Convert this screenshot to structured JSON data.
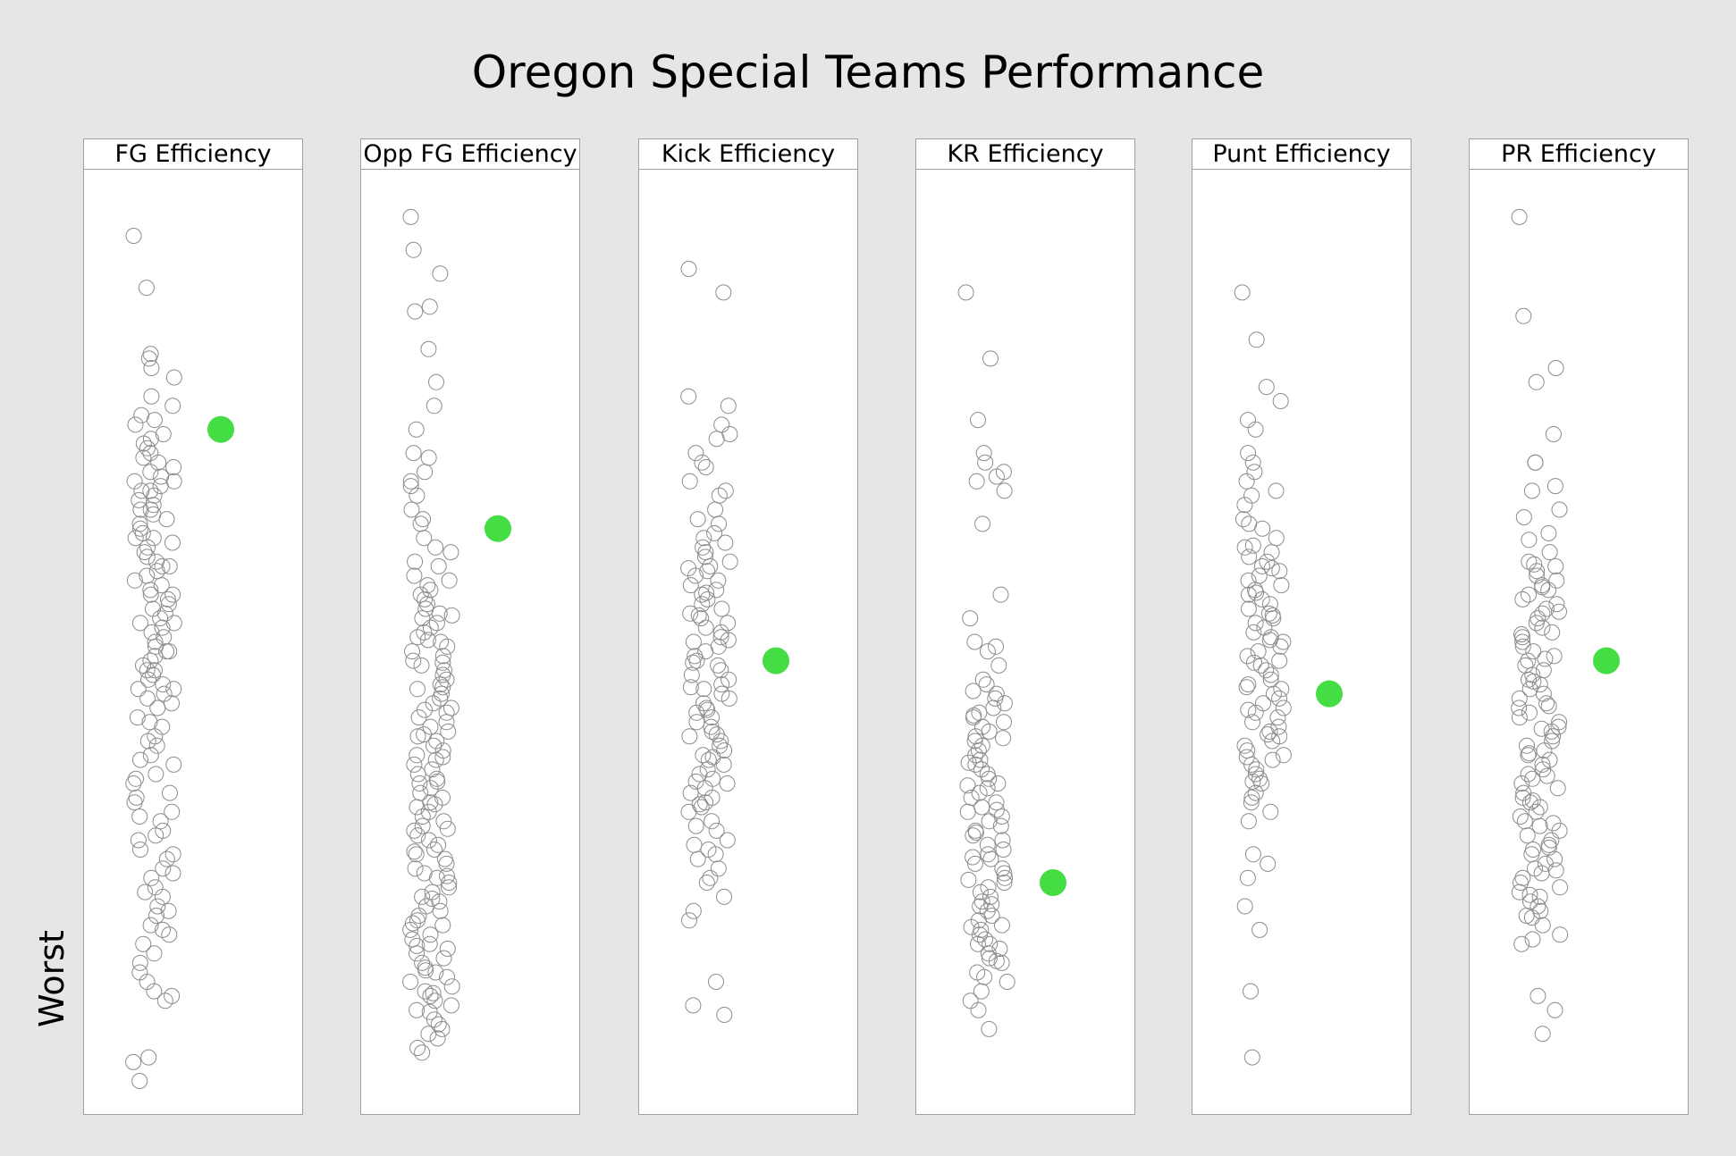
{
  "chart_data": {
    "type": "scatter",
    "title": "Oregon Special Teams Performance",
    "ylabel": "Worst",
    "xlabel": "",
    "grid": false,
    "ylim": [
      0,
      100
    ],
    "colors": {
      "teams": "#8c8c8c",
      "oregon": "#44dd44",
      "panel_border": "#a0a0a0",
      "background": "#e6e6e6"
    },
    "panels": [
      {
        "name": "FG Efficiency",
        "highlight": 72.5,
        "values": [
          93,
          87.5,
          80.5,
          78,
          76,
          74,
          73,
          72,
          71,
          70,
          69.5,
          68.5,
          68,
          67.5,
          67,
          66.5,
          66,
          65.5,
          65,
          64.5,
          64,
          63.5,
          63,
          62.5,
          62,
          61.5,
          61,
          60.5,
          60,
          59.5,
          59,
          58.5,
          58,
          57.5,
          57,
          56.5,
          56,
          55.5,
          55,
          54.5,
          54,
          53.5,
          53,
          52.5,
          52,
          51.5,
          51,
          50.5,
          50,
          49.5,
          49,
          48.5,
          48,
          47.5,
          47,
          46.5,
          46,
          45.5,
          45,
          44.5,
          44,
          43,
          42,
          41,
          40,
          39,
          38,
          37,
          36,
          35,
          34,
          33,
          32,
          31,
          30,
          29,
          28,
          27,
          26,
          25,
          24,
          23,
          22,
          21,
          20,
          19,
          17,
          15,
          14,
          13,
          12,
          5.5,
          3.5,
          80,
          79,
          75,
          73.5,
          71.5,
          70.5,
          69,
          67,
          66,
          64,
          61,
          58,
          55,
          52,
          49,
          47,
          45,
          43.5,
          41.5,
          39.5,
          37.5,
          35.5,
          33.5,
          31.5,
          29.5,
          27.5,
          25.5,
          23.5,
          21.5,
          19.5,
          18,
          16,
          12.5,
          6
        ]
      },
      {
        "name": "Opp FG Efficiency",
        "highlight": 62,
        "values": [
          95,
          91.5,
          89,
          85.5,
          85,
          81,
          77.5,
          75,
          72.5,
          70,
          69.5,
          68,
          67,
          66.5,
          65.5,
          64,
          63,
          62.5,
          61,
          59.5,
          58,
          57,
          56.5,
          56,
          55,
          54.5,
          54,
          53.5,
          53,
          52.5,
          52,
          51.5,
          51,
          50.5,
          50,
          49.5,
          49,
          48.5,
          48,
          47.5,
          47,
          46.5,
          46,
          45.5,
          45,
          44.5,
          44,
          43.5,
          43,
          42.5,
          42,
          41.5,
          41,
          40.5,
          40,
          39.5,
          39,
          38.5,
          38,
          37.5,
          37,
          36.5,
          36,
          35.5,
          35,
          34.5,
          34,
          33.5,
          33,
          32.5,
          32,
          31.5,
          31,
          30.5,
          30,
          29.5,
          29,
          28.5,
          28,
          27.5,
          27,
          26.5,
          26,
          25.5,
          25,
          24.5,
          24,
          23.5,
          23,
          22.5,
          22,
          21.5,
          21,
          20.5,
          20,
          19.5,
          19,
          18.5,
          18,
          17.5,
          17,
          16.5,
          16,
          15.5,
          15,
          14.5,
          14,
          13.5,
          13,
          12.5,
          12,
          11.5,
          11,
          10,
          9.5,
          9,
          8,
          7,
          6.5,
          60,
          58.5,
          55.5,
          52.8,
          50.2,
          47.8,
          45.2,
          42.8,
          40.2,
          37.8,
          35.2,
          32.8,
          30.2,
          27.8,
          25.2,
          22.8,
          20.2,
          17.8,
          15.2,
          12.8,
          10.8,
          8.5
        ]
      },
      {
        "name": "Kick Efficiency",
        "highlight": 48,
        "values": [
          89.5,
          87,
          76,
          75,
          73,
          71.5,
          70,
          68.5,
          67,
          65.5,
          64,
          62.5,
          61.5,
          61,
          60,
          59.5,
          59,
          58.5,
          58,
          57.5,
          57,
          56.5,
          56,
          55.5,
          55,
          54.5,
          54,
          53.5,
          53,
          52.5,
          52,
          51.5,
          51,
          50.5,
          50,
          49.5,
          49,
          48.5,
          48,
          47.5,
          47,
          46.5,
          46,
          45.5,
          45,
          44.5,
          44,
          43.5,
          43,
          42.5,
          42,
          41.5,
          41,
          40.5,
          40,
          39.5,
          39,
          38.5,
          38,
          37.5,
          37,
          36.5,
          36,
          35.5,
          35,
          34.5,
          34,
          33.5,
          33,
          32.5,
          32,
          31,
          30,
          29,
          28,
          27,
          26,
          25,
          24.5,
          23,
          21.5,
          20.5,
          14,
          11.5,
          10.5,
          72,
          69,
          66,
          63,
          60.5,
          57.8,
          55.2,
          52.8,
          50.2,
          47.8,
          45.2,
          42.8,
          40.2,
          37.8,
          35.2,
          32.8,
          30.5,
          28.5,
          27.5
        ]
      },
      {
        "name": "KR Efficiency",
        "highlight": 24.5,
        "values": [
          87,
          80,
          73.5,
          70,
          69,
          68,
          67.5,
          67,
          66,
          62.5,
          55,
          52.5,
          50,
          49.5,
          49,
          47.5,
          45.5,
          44.5,
          44,
          43.5,
          43,
          42.5,
          42,
          41.5,
          41,
          40.5,
          40,
          39.5,
          39,
          38.5,
          38,
          37.5,
          37,
          36.5,
          36,
          35.5,
          35,
          34.5,
          34,
          33.5,
          33,
          32.5,
          32,
          31.5,
          31,
          30.5,
          30,
          29.5,
          29,
          28.5,
          28,
          27.5,
          27,
          26.5,
          26,
          25.5,
          25,
          24.5,
          24,
          23.5,
          23,
          22.5,
          22,
          21.5,
          21,
          20.5,
          20,
          19.5,
          19,
          18.5,
          18,
          17.5,
          17,
          16.5,
          16,
          15,
          14,
          13,
          11,
          9,
          46,
          44.8,
          42.2,
          39.8,
          37.2,
          34.8,
          32.2,
          29.8,
          27.2,
          24.8,
          22.2,
          19.8,
          18,
          16.2,
          14.5,
          12
        ]
      },
      {
        "name": "Punt Efficiency",
        "highlight": 44.5,
        "values": [
          87,
          82,
          77,
          75.5,
          73.5,
          70,
          68,
          67,
          66,
          64.5,
          63,
          62,
          61,
          60,
          59.5,
          59,
          58.5,
          58,
          57.5,
          57,
          56.5,
          56,
          55.5,
          55,
          54.5,
          54,
          53.5,
          53,
          52.5,
          52,
          51.5,
          51,
          50.5,
          50,
          49.5,
          49,
          48.5,
          48,
          47.5,
          47,
          46.5,
          46,
          45.5,
          45,
          44.5,
          44,
          43.5,
          43,
          42.5,
          42,
          41.5,
          41,
          40.5,
          40,
          39.5,
          39,
          38.5,
          38,
          37.5,
          37,
          36.5,
          36,
          35.5,
          35,
          34,
          33,
          32,
          31,
          27.5,
          26.5,
          25,
          22,
          19.5,
          13,
          6,
          72.5,
          69,
          65.5,
          62.5,
          60.2,
          57.8,
          55.2,
          52.8,
          50.2,
          47.8,
          45.2,
          42.8,
          40.2,
          37.8,
          35.2,
          33.5
        ]
      },
      {
        "name": "PR Efficiency",
        "highlight": 48,
        "values": [
          95,
          84.5,
          79,
          77.5,
          72,
          69,
          66.5,
          64,
          61.5,
          59.5,
          58.5,
          58,
          57.5,
          57,
          56.5,
          56,
          55.5,
          55,
          54.5,
          54,
          53.5,
          53,
          52.5,
          52,
          51.5,
          51,
          50.5,
          50,
          49.5,
          49,
          48.5,
          48,
          47.5,
          47,
          46.5,
          46,
          45.5,
          45,
          44.5,
          44,
          43.5,
          43,
          42.5,
          42,
          41.5,
          41,
          40.5,
          40,
          39.5,
          39,
          38.5,
          38,
          37.5,
          37,
          36.5,
          36,
          35.5,
          35,
          34.5,
          34,
          33.5,
          33,
          32.5,
          32,
          31.5,
          31,
          30.5,
          30,
          29.5,
          29,
          28.5,
          28,
          27.5,
          27,
          26.5,
          26,
          25.5,
          25,
          24.5,
          24,
          23.5,
          23,
          22.5,
          22,
          21.5,
          21,
          20,
          19,
          18,
          12.5,
          11,
          8.5,
          69,
          66,
          63.2,
          60.8,
          58.2,
          55.8,
          53.2,
          50.8,
          48.2,
          45.8,
          43.2,
          40.8,
          38.2,
          35.8,
          33.2,
          30.8,
          28.2,
          25.8,
          23.2,
          20.8,
          18.5
        ]
      }
    ]
  }
}
